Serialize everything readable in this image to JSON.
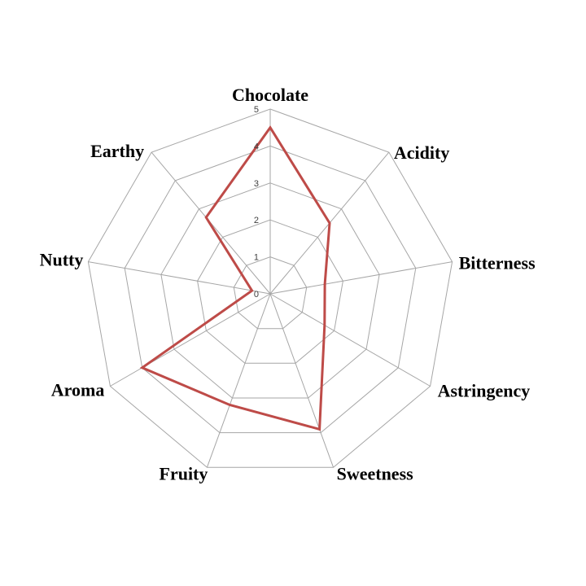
{
  "chart_data": {
    "type": "radar",
    "title": "",
    "categories": [
      "Chocolate",
      "Acidity",
      "Bitterness",
      "Astringency",
      "Sweetness",
      "Fruity",
      "Aroma",
      "Nutty",
      "Earthy"
    ],
    "values": [
      4.5,
      2.5,
      1.5,
      1.7,
      3.9,
      3.2,
      4.0,
      0.5,
      2.7
    ],
    "ticks": [
      "0",
      "1",
      "2",
      "3",
      "4",
      "5"
    ],
    "axis_range": [
      0,
      5
    ],
    "grid": true,
    "legend_position": "none",
    "colors": {
      "series": "#BE4B48",
      "grid": "#A6A6A6",
      "tick_label": "#3F3F3F",
      "axis_label": "#000000",
      "background": "#FFFFFF"
    }
  }
}
